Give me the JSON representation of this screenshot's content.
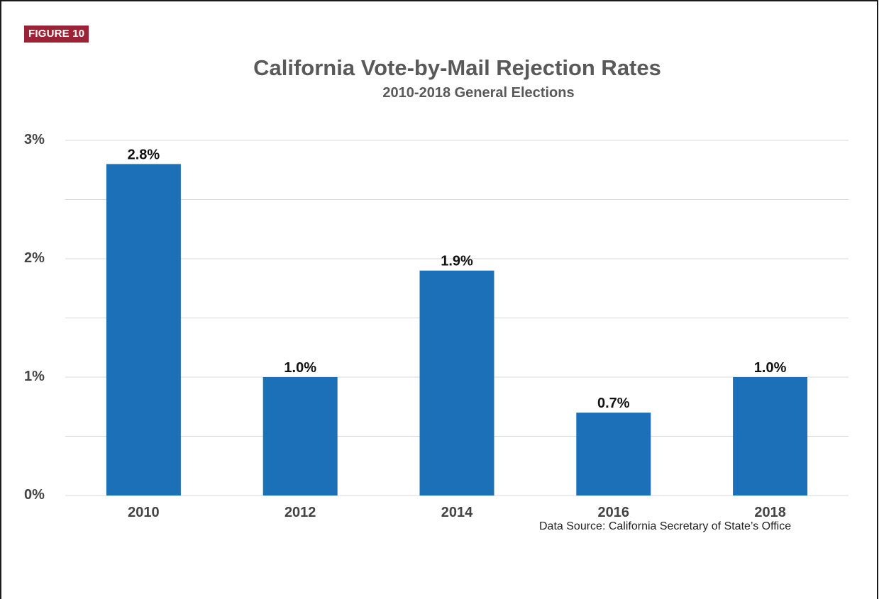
{
  "figure_label": "FIGURE 10",
  "source_note": "Data Source: California Secretary of State’s Office",
  "colors": {
    "bar": "#1b70b8",
    "badge": "#9b2335",
    "title": "#595959",
    "grid": "#d9d9d9"
  },
  "chart_data": {
    "type": "bar",
    "title": "California Vote-by-Mail Rejection Rates",
    "subtitle": "2010-2018 General Elections",
    "xlabel": "",
    "ylabel": "",
    "categories": [
      "2010",
      "2012",
      "2014",
      "2016",
      "2018"
    ],
    "values": [
      2.8,
      1.0,
      1.9,
      0.7,
      1.0
    ],
    "value_labels": [
      "2.8%",
      "1.0%",
      "1.9%",
      "0.7%",
      "1.0%"
    ],
    "ylim": [
      0,
      3
    ],
    "yticks": [
      0,
      1,
      2,
      3
    ],
    "ytick_labels": [
      "0%",
      "1%",
      "2%",
      "3%"
    ],
    "minor_gridlines": [
      0.5,
      1.5,
      2.5
    ],
    "grid": true,
    "legend": "none"
  }
}
